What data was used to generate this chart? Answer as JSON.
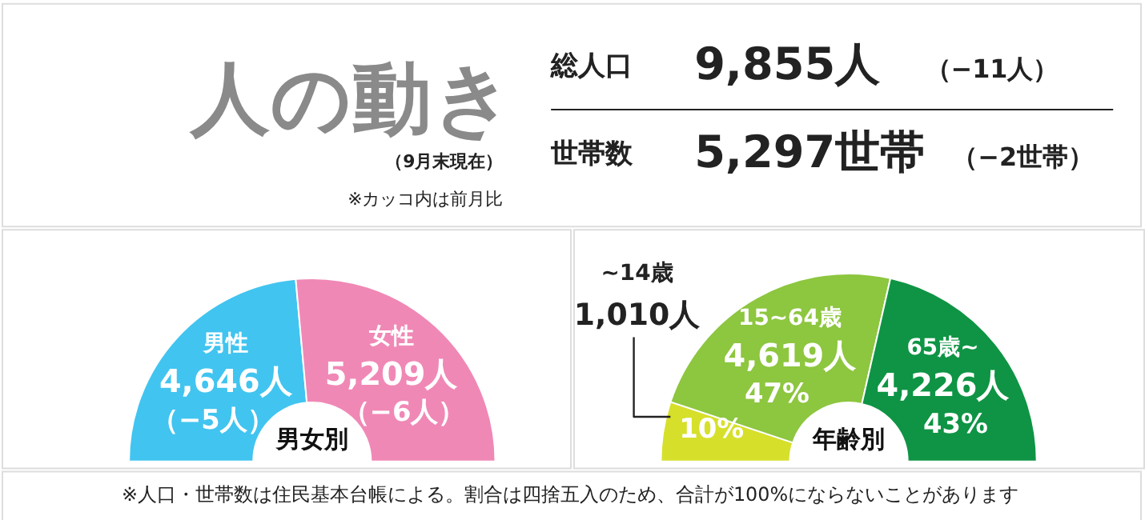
{
  "chart_data": [
    {
      "type": "other",
      "title": "人の動き",
      "subtitle": "（9月末現在）",
      "annotations": [
        "※カッコ内は前月比",
        "総人口",
        "9,855人",
        "（−11人）",
        "世帯数",
        "5,297世帯",
        "（−2世帯）",
        "※人口・世帯数は住民基本台帳による。割合は四捨五入のため、合計が100%にならないことがあります"
      ]
    },
    {
      "type": "donut",
      "title": "男女別",
      "categories": [
        "男性",
        "女性"
      ],
      "values": [
        4646,
        5209
      ],
      "colors": [
        "#41c4f0",
        "#f088b6"
      ],
      "value_labels": [
        "4,646人",
        "5,209人"
      ],
      "annotations": [
        "（−5人）",
        "（−6人）"
      ]
    },
    {
      "type": "donut",
      "title": "年齢別",
      "categories": [
        "~14歳",
        "15~64歳",
        "65歳~"
      ],
      "values": [
        1010,
        4619,
        4226
      ],
      "colors": [
        "#d6e02a",
        "#8dc63f",
        "#0e9444"
      ],
      "value_labels": [
        "1,010人",
        "4,619人",
        "4,226人"
      ],
      "annotations": [
        "10%",
        "47%",
        "43%"
      ]
    }
  ]
}
